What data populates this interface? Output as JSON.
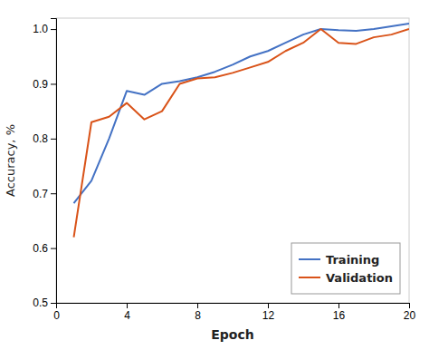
{
  "chart_data": {
    "type": "line",
    "xlabel": "Epoch",
    "ylabel": "Accuracy, %",
    "x": [
      1,
      2,
      3,
      4,
      5,
      6,
      7,
      8,
      9,
      10,
      11,
      12,
      13,
      14,
      15,
      16,
      17,
      18,
      19,
      20
    ],
    "series": [
      {
        "name": "Training",
        "color": "#4472C4",
        "values": [
          0.682,
          0.723,
          0.8,
          0.887,
          0.88,
          0.9,
          0.905,
          0.912,
          0.922,
          0.935,
          0.95,
          0.96,
          0.975,
          0.99,
          1.0,
          0.998,
          0.997,
          1.0,
          1.005,
          1.01
        ]
      },
      {
        "name": "Validation",
        "color": "#D95319",
        "values": [
          0.62,
          0.83,
          0.84,
          0.865,
          0.835,
          0.85,
          0.9,
          0.91,
          0.912,
          0.92,
          0.93,
          0.94,
          0.96,
          0.975,
          1.0,
          0.975,
          0.973,
          0.985,
          0.99,
          1.0
        ]
      }
    ],
    "xlim": [
      0,
      20
    ],
    "ylim": [
      0.5,
      1.02
    ],
    "xticks": [
      0,
      4,
      8,
      12,
      16,
      20
    ],
    "yticks": [
      0.5,
      0.6,
      0.7,
      0.8,
      0.9,
      {
        "value": 1.0,
        "label": "1.0"
      }
    ],
    "legend": "lower right",
    "grid": false
  }
}
